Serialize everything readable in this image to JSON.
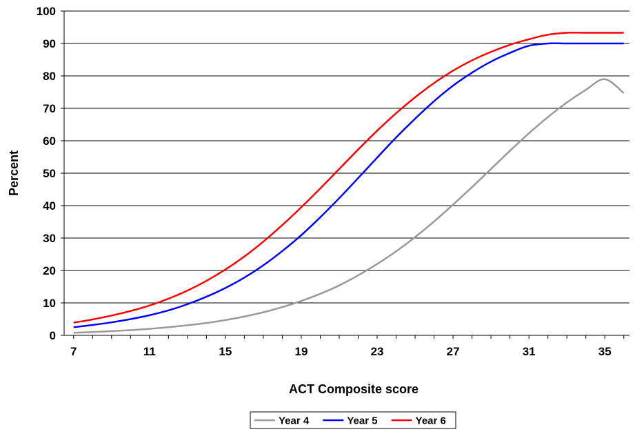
{
  "chart_data": {
    "type": "line",
    "title": "",
    "xlabel": "ACT Composite score",
    "ylabel": "Percent",
    "xlim": [
      6.5,
      36.3
    ],
    "ylim": [
      0,
      100
    ],
    "x_ticks": [
      7,
      11,
      15,
      19,
      23,
      27,
      31,
      35
    ],
    "y_ticks": [
      0,
      10,
      20,
      30,
      40,
      50,
      60,
      70,
      80,
      90,
      100
    ],
    "grid": true,
    "legend_position": "bottom",
    "x": [
      7,
      8,
      9,
      10,
      11,
      12,
      13,
      14,
      15,
      16,
      17,
      18,
      19,
      20,
      21,
      22,
      23,
      24,
      25,
      26,
      27,
      28,
      29,
      30,
      31,
      32,
      33,
      34,
      35,
      36
    ],
    "series": [
      {
        "name": "Year 4",
        "color": "#999999",
        "values": [
          0.8,
          1.0,
          1.3,
          1.6,
          2.0,
          2.5,
          3.1,
          3.8,
          4.7,
          5.8,
          7.1,
          8.7,
          10.6,
          12.8,
          15.4,
          18.5,
          22.0,
          25.9,
          30.3,
          35.1,
          40.3,
          45.7,
          51.3,
          56.9,
          62.3,
          67.3,
          71.8,
          75.7,
          79.0,
          74.7
        ]
      },
      {
        "name": "Year 5",
        "color": "#0000ff",
        "values": [
          2.5,
          3.2,
          4.0,
          5.0,
          6.2,
          7.7,
          9.6,
          11.9,
          14.6,
          17.8,
          21.6,
          26.0,
          30.9,
          36.4,
          42.3,
          48.5,
          54.8,
          61.0,
          66.8,
          72.2,
          77.0,
          81.0,
          84.4,
          87.1,
          89.3,
          90.0,
          90.0,
          90.0,
          90.0,
          90.0
        ]
      },
      {
        "name": "Year 6",
        "color": "#ff0000",
        "values": [
          3.9,
          4.9,
          6.1,
          7.5,
          9.2,
          11.3,
          13.8,
          16.8,
          20.3,
          24.3,
          28.9,
          34.0,
          39.5,
          45.3,
          51.3,
          57.3,
          63.1,
          68.5,
          73.4,
          77.8,
          81.6,
          84.8,
          87.4,
          89.6,
          91.3,
          92.7,
          93.3,
          93.3,
          93.3,
          93.3
        ]
      }
    ]
  }
}
